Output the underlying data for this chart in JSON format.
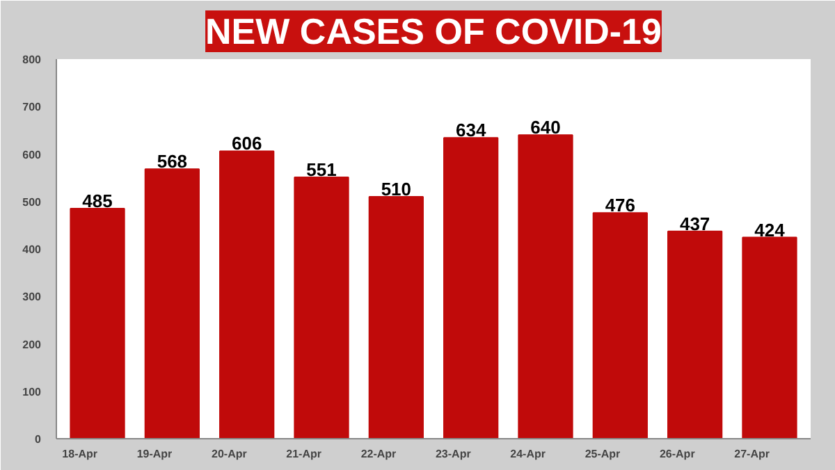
{
  "chart_data": {
    "type": "bar",
    "title": "NEW CASES OF COVID-19",
    "categories": [
      "18-Apr",
      "19-Apr",
      "20-Apr",
      "21-Apr",
      "22-Apr",
      "23-Apr",
      "24-Apr",
      "25-Apr",
      "26-Apr",
      "27-Apr"
    ],
    "values": [
      485,
      568,
      606,
      551,
      510,
      634,
      640,
      476,
      437,
      424
    ],
    "color": "#c00a0a",
    "ylim": [
      0,
      800
    ],
    "yticks": [
      0,
      100,
      200,
      300,
      400,
      500,
      600,
      700,
      800
    ],
    "data_labels": true,
    "grid": false
  }
}
